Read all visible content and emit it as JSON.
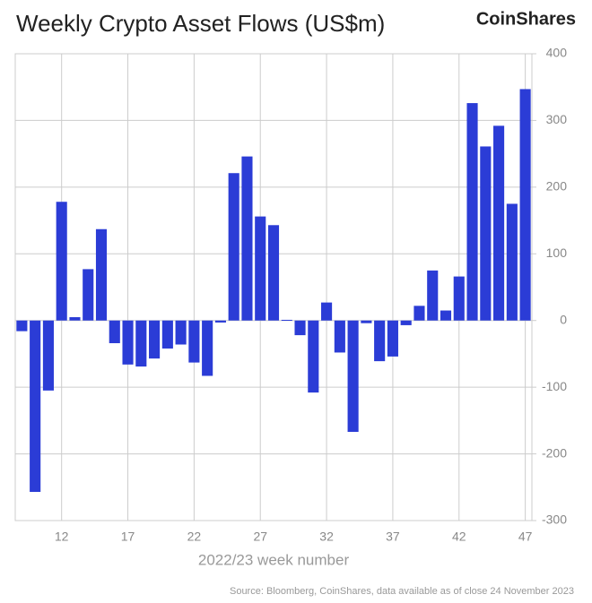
{
  "chart_data": {
    "type": "bar",
    "title": "Weekly Crypto Asset Flows (US$m)",
    "brand": "CoinShares",
    "x_label": "2022/23 week number",
    "source": "Source: Bloomberg, CoinShares, data available as of close 24 November 2023",
    "categories": [
      null,
      null,
      null,
      12,
      null,
      null,
      null,
      null,
      17,
      null,
      null,
      null,
      null,
      22,
      null,
      null,
      null,
      null,
      27,
      null,
      null,
      null,
      null,
      32,
      null,
      null,
      null,
      null,
      37,
      null,
      null,
      null,
      null,
      42,
      null,
      null,
      null,
      null,
      47
    ],
    "values": [
      -16,
      -257,
      -105,
      178,
      5,
      77,
      137,
      -34,
      -66,
      -69,
      -57,
      -42,
      -36,
      -63,
      -83,
      -3,
      221,
      246,
      156,
      143,
      1,
      -22,
      -108,
      27,
      -48,
      -167,
      -4,
      -61,
      -54,
      -7,
      22,
      75,
      15,
      66,
      326,
      261,
      292,
      175,
      347
    ],
    "color": "#2b3cd6",
    "ylim": [
      -300,
      400
    ],
    "yticks": [
      -300,
      -200,
      -100,
      0,
      100,
      200,
      300,
      400
    ],
    "grid": true,
    "y_axis_side": "right"
  }
}
